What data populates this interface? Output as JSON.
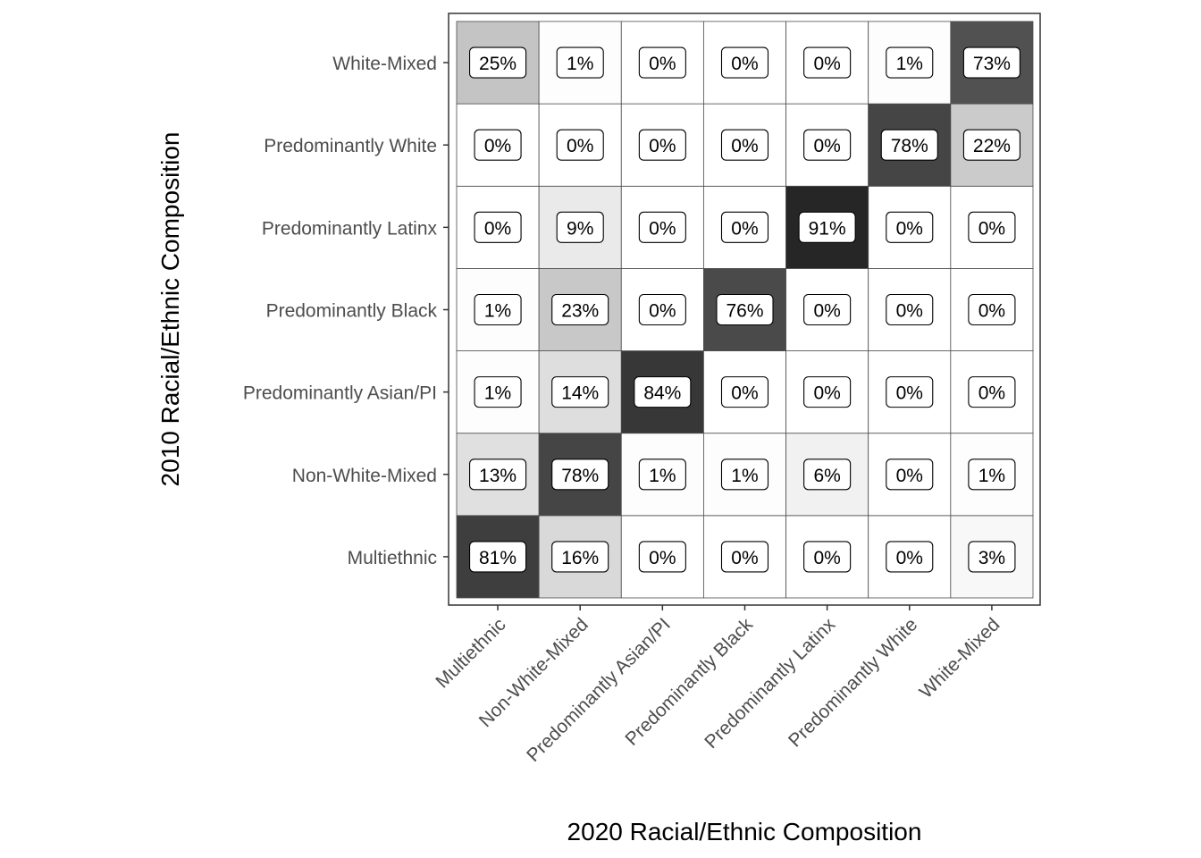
{
  "chart_data": {
    "type": "heatmap",
    "xlabel": "2020 Racial/Ethnic Composition",
    "ylabel": "2010 Racial/Ethnic Composition",
    "x_categories": [
      "Multiethnic",
      "Non-White-Mixed",
      "Predominantly Asian/PI",
      "Predominantly Black",
      "Predominantly Latinx",
      "Predominantly White",
      "White-Mixed"
    ],
    "y_categories": [
      "Multiethnic",
      "Non-White-Mixed",
      "Predominantly Asian/PI",
      "Predominantly Black",
      "Predominantly Latinx",
      "Predominantly White",
      "White-Mixed"
    ],
    "values": [
      [
        81,
        16,
        0,
        0,
        0,
        0,
        3
      ],
      [
        13,
        78,
        1,
        1,
        6,
        0,
        1
      ],
      [
        1,
        14,
        84,
        0,
        0,
        0,
        0
      ],
      [
        1,
        23,
        0,
        76,
        0,
        0,
        0
      ],
      [
        0,
        9,
        0,
        0,
        91,
        0,
        0
      ],
      [
        0,
        0,
        0,
        0,
        0,
        78,
        22
      ],
      [
        25,
        1,
        0,
        0,
        0,
        1,
        73
      ]
    ],
    "labels": [
      [
        "81%",
        "16%",
        "0%",
        "0%",
        "0%",
        "0%",
        "3%"
      ],
      [
        "13%",
        "78%",
        "1%",
        "1%",
        "6%",
        "0%",
        "1%"
      ],
      [
        "1%",
        "14%",
        "84%",
        "0%",
        "0%",
        "0%",
        "0%"
      ],
      [
        "1%",
        "23%",
        "0%",
        "76%",
        "0%",
        "0%",
        "0%"
      ],
      [
        "0%",
        "9%",
        "0%",
        "0%",
        "91%",
        "0%",
        "0%"
      ],
      [
        "0%",
        "0%",
        "0%",
        "0%",
        "0%",
        "78%",
        "22%"
      ],
      [
        "25%",
        "1%",
        "0%",
        "0%",
        "0%",
        "1%",
        "73%"
      ]
    ],
    "grid": false,
    "legend": "none",
    "colors": {
      "low": "#ffffff",
      "high": "#111111",
      "cell_border": "#4d4d4d",
      "panel_border": "#333333",
      "tick_label": "#4d4d4d"
    }
  }
}
